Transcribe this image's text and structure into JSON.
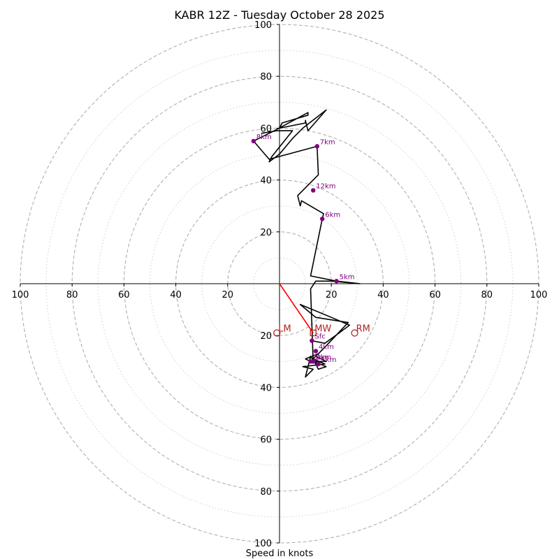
{
  "chart_data": {
    "type": "hodograph",
    "title": "KABR 12Z - Tuesday October 28 2025",
    "xlabel": "Speed in knots",
    "xlim": [
      -100,
      100
    ],
    "ylim": [
      -100,
      100
    ],
    "rings_major": [
      20,
      40,
      60,
      80,
      100
    ],
    "rings_minor": [
      10,
      30,
      50,
      70,
      90
    ],
    "x_ticks": [
      {
        "value": -100,
        "label": "100"
      },
      {
        "value": -80,
        "label": "80"
      },
      {
        "value": -60,
        "label": "60"
      },
      {
        "value": -40,
        "label": "40"
      },
      {
        "value": -20,
        "label": "20"
      },
      {
        "value": 20,
        "label": "20"
      },
      {
        "value": 40,
        "label": "40"
      },
      {
        "value": 60,
        "label": "60"
      },
      {
        "value": 80,
        "label": "80"
      },
      {
        "value": 100,
        "label": "100"
      }
    ],
    "y_ticks": [
      {
        "value": 100,
        "label": "100"
      },
      {
        "value": 80,
        "label": "80"
      },
      {
        "value": 60,
        "label": "60"
      },
      {
        "value": 40,
        "label": "40"
      },
      {
        "value": 20,
        "label": "20"
      },
      {
        "value": -20,
        "label": "20"
      },
      {
        "value": -40,
        "label": "40"
      },
      {
        "value": -60,
        "label": "60"
      },
      {
        "value": -80,
        "label": "80"
      },
      {
        "value": -100,
        "label": "100"
      }
    ],
    "wind_profile": [
      [
        12.5,
        -22
      ],
      [
        17.5,
        -23
      ],
      [
        23,
        -19
      ],
      [
        27,
        -16
      ],
      [
        20,
        -13
      ],
      [
        8,
        -8
      ],
      [
        14,
        -13
      ],
      [
        26.5,
        -15
      ],
      [
        17,
        -25
      ],
      [
        14,
        -28
      ],
      [
        18,
        -30
      ],
      [
        12,
        -30
      ],
      [
        10,
        -29
      ],
      [
        15,
        -27
      ],
      [
        13,
        -29
      ],
      [
        17.5,
        -31
      ],
      [
        9,
        -32
      ],
      [
        13,
        -33
      ],
      [
        10,
        -36
      ],
      [
        12,
        -28
      ],
      [
        14,
        -31
      ],
      [
        15,
        -33
      ],
      [
        18,
        -32
      ],
      [
        13,
        -30
      ],
      [
        12,
        -2
      ],
      [
        14,
        1
      ],
      [
        20,
        1
      ],
      [
        31,
        0
      ],
      [
        22,
        1
      ],
      [
        12,
        3
      ],
      [
        16.5,
        25
      ],
      [
        17,
        27
      ],
      [
        8.5,
        32
      ],
      [
        8,
        30
      ],
      [
        7,
        34
      ],
      [
        15,
        42
      ],
      [
        14.5,
        53
      ],
      [
        -4,
        48
      ],
      [
        -10,
        55
      ],
      [
        -2,
        59
      ],
      [
        11,
        66
      ],
      [
        11,
        65
      ],
      [
        1,
        62
      ],
      [
        0,
        60
      ],
      [
        10,
        62
      ],
      [
        10,
        63
      ],
      [
        11,
        59
      ],
      [
        18,
        67
      ],
      [
        9,
        60
      ],
      [
        5,
        56
      ],
      [
        0,
        50
      ],
      [
        -4,
        47
      ],
      [
        -3,
        49
      ],
      [
        5,
        59
      ],
      [
        -1,
        59
      ],
      [
        -7,
        58
      ]
    ],
    "height_markers": [
      {
        "label": "Sfc",
        "u": 12.5,
        "v": -22
      },
      {
        "label": "1km",
        "u": 15,
        "v": -31
      },
      {
        "label": "2km",
        "u": 13,
        "v": -30
      },
      {
        "label": "3km",
        "u": 12,
        "v": -30
      },
      {
        "label": "4km",
        "u": 14,
        "v": -26
      },
      {
        "label": "5km",
        "u": 22,
        "v": 1
      },
      {
        "label": "6km",
        "u": 16.5,
        "v": 25
      },
      {
        "label": "7km",
        "u": 14.5,
        "v": 53
      },
      {
        "label": "8km",
        "u": -10,
        "v": 55
      },
      {
        "label": "12km",
        "u": 13,
        "v": 36
      }
    ],
    "storm_motion": [
      {
        "label": "LM",
        "u": -1,
        "v": -19
      },
      {
        "label": "MW",
        "u": 13,
        "v": -19
      },
      {
        "label": "RM",
        "u": 29,
        "v": -19
      }
    ],
    "shear_vector": {
      "from": [
        0,
        0
      ],
      "to": [
        13,
        -19
      ]
    },
    "colors": {
      "profile": "#000000",
      "markers": "#800080",
      "motion": "#b22222",
      "shear": "#ff0000",
      "grid": "#b0b0b0"
    }
  }
}
